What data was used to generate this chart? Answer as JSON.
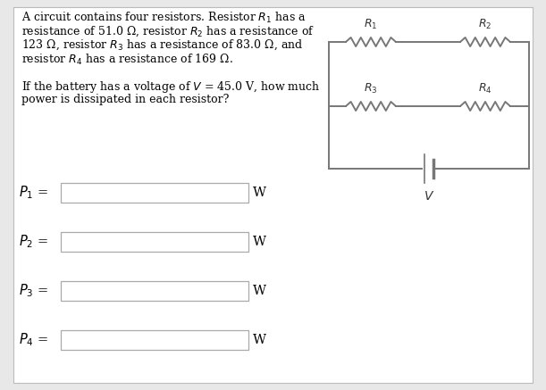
{
  "bg_color": "#e8e8e8",
  "panel_color": "#ffffff",
  "text_color": "#000000",
  "problem_text_lines": [
    "A circuit contains four resistors. Resistor $R_1$ has a",
    "resistance of 51.0 Ω, resistor $R_2$ has a resistance of",
    "123 Ω, resistor $R_3$ has a resistance of 83.0 Ω, and",
    "resistor $R_4$ has a resistance of 169 Ω.",
    "",
    "If the battery has a voltage of $V$ = 45.0 V, how much",
    "power is dissipated in each resistor?"
  ],
  "power_labels": [
    "$P_1$",
    "$P_2$",
    "$P_3$",
    "$P_4$"
  ],
  "unit_label": "W",
  "circuit": {
    "r1_label": "$R_1$",
    "r2_label": "$R_2$",
    "r3_label": "$R_3$",
    "r4_label": "$R_4$",
    "v_label": "$V$"
  },
  "input_box_color": "#ffffff",
  "input_box_border": "#aaaaaa",
  "font_size_text": 9.0,
  "font_size_pw": 10.5,
  "wire_color": "#777777"
}
